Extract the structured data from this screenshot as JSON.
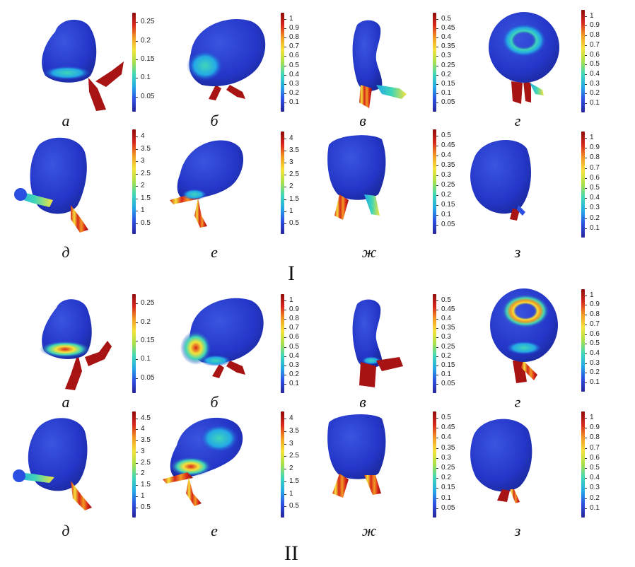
{
  "colors": {
    "scale": [
      "#26249a",
      "#2b4fe0",
      "#24a8e6",
      "#3fd6b8",
      "#a7e04a",
      "#f5e33a",
      "#f29a23",
      "#d7261a",
      "#8e0c0c"
    ],
    "surface": "#2436c8"
  },
  "groups": [
    {
      "label": "I",
      "panels": [
        {
          "letter": "а",
          "ticks": [
            "0.25",
            "0.2",
            "0.15",
            "0.1",
            "0.05"
          ]
        },
        {
          "letter": "б",
          "ticks": [
            "1",
            "0.9",
            "0.8",
            "0.7",
            "0.6",
            "0.5",
            "0.4",
            "0.3",
            "0.2",
            "0.1"
          ]
        },
        {
          "letter": "в",
          "ticks": [
            "0.5",
            "0.45",
            "0.4",
            "0.35",
            "0.3",
            "0.25",
            "0.2",
            "0.15",
            "0.1",
            "0.05"
          ]
        },
        {
          "letter": "г",
          "ticks": [
            "1",
            "0.9",
            "0.8",
            "0.7",
            "0.6",
            "0.5",
            "0.4",
            "0.3",
            "0.2",
            "0.1"
          ]
        },
        {
          "letter": "д",
          "ticks": [
            "4",
            "3.5",
            "3",
            "2.5",
            "2",
            "1.5",
            "1",
            "0.5"
          ]
        },
        {
          "letter": "е",
          "ticks": [
            "4",
            "3.5",
            "3",
            "2.5",
            "2",
            "1.5",
            "1",
            "0.5"
          ]
        },
        {
          "letter": "ж",
          "ticks": [
            "0.5",
            "0.45",
            "0.4",
            "0.35",
            "0.3",
            "0.25",
            "0.2",
            "0.15",
            "0.1",
            "0.05"
          ]
        },
        {
          "letter": "з",
          "ticks": [
            "1",
            "0.9",
            "0.8",
            "0.7",
            "0.6",
            "0.5",
            "0.4",
            "0.3",
            "0.2",
            "0.1"
          ]
        }
      ]
    },
    {
      "label": "II",
      "panels": [
        {
          "letter": "а",
          "ticks": [
            "0.25",
            "0.2",
            "0.15",
            "0.1",
            "0.05"
          ]
        },
        {
          "letter": "б",
          "ticks": [
            "1",
            "0.9",
            "0.8",
            "0.7",
            "0.6",
            "0.5",
            "0.4",
            "0.3",
            "0.2",
            "0.1"
          ]
        },
        {
          "letter": "в",
          "ticks": [
            "0.5",
            "0.45",
            "0.4",
            "0.35",
            "0.3",
            "0.25",
            "0.2",
            "0.15",
            "0.1",
            "0.05"
          ]
        },
        {
          "letter": "г",
          "ticks": [
            "1",
            "0.9",
            "0.8",
            "0.7",
            "0.6",
            "0.5",
            "0.4",
            "0.3",
            "0.2",
            "0.1"
          ]
        },
        {
          "letter": "д",
          "ticks": [
            "4.5",
            "4",
            "3.5",
            "3",
            "2.5",
            "2",
            "1.5",
            "1",
            "0.5"
          ]
        },
        {
          "letter": "е",
          "ticks": [
            "4",
            "3.5",
            "3",
            "2.5",
            "2",
            "1.5",
            "1",
            "0.5"
          ]
        },
        {
          "letter": "ж",
          "ticks": [
            "0.5",
            "0.45",
            "0.4",
            "0.35",
            "0.3",
            "0.25",
            "0.2",
            "0.15",
            "0.1",
            "0.05"
          ]
        },
        {
          "letter": "з",
          "ticks": [
            "1",
            "0.9",
            "0.8",
            "0.7",
            "0.6",
            "0.5",
            "0.4",
            "0.3",
            "0.2",
            "0.1"
          ]
        }
      ]
    }
  ]
}
